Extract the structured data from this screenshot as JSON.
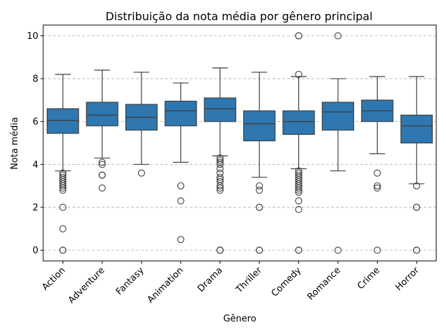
{
  "chart_data": {
    "type": "boxplot",
    "title": "Distribuição da nota média por gênero principal",
    "xlabel": "Gênero",
    "ylabel": "Nota média",
    "ylim": [
      -0.5,
      10.5
    ],
    "yticks": [
      0,
      2,
      4,
      6,
      8,
      10
    ],
    "grid": "horizontal-dashed",
    "box_color": "#2e77b0",
    "categories": [
      "Action",
      "Adventure",
      "Fantasy",
      "Animation",
      "Drama",
      "Thriller",
      "Comedy",
      "Romance",
      "Crime",
      "Horror"
    ],
    "boxes": [
      {
        "name": "Action",
        "whisker_low": 3.7,
        "q1": 5.45,
        "median": 6.05,
        "q3": 6.6,
        "whisker_high": 8.2,
        "outliers": [
          3.6,
          3.5,
          3.4,
          3.3,
          3.2,
          3.1,
          3.0,
          2.9,
          2.8,
          2.0,
          1.0,
          0,
          0
        ]
      },
      {
        "name": "Adventure",
        "whisker_low": 4.3,
        "q1": 5.8,
        "median": 6.3,
        "q3": 6.9,
        "whisker_high": 8.4,
        "outliers": [
          4.1,
          4.0,
          3.5,
          3.5,
          2.9
        ]
      },
      {
        "name": "Fantasy",
        "whisker_low": 4.0,
        "q1": 5.6,
        "median": 6.2,
        "q3": 6.8,
        "whisker_high": 8.3,
        "outliers": [
          3.6
        ]
      },
      {
        "name": "Animation",
        "whisker_low": 4.1,
        "q1": 5.8,
        "median": 6.5,
        "q3": 6.95,
        "whisker_high": 7.8,
        "outliers": [
          3.0,
          2.3,
          0.5
        ]
      },
      {
        "name": "Drama",
        "whisker_low": 4.4,
        "q1": 6.0,
        "median": 6.6,
        "q3": 7.1,
        "whisker_high": 8.5,
        "outliers": [
          4.3,
          4.2,
          4.1,
          4.0,
          3.8,
          3.6,
          3.4,
          3.3,
          3.2,
          3.0,
          2.9,
          2.8,
          0,
          0,
          0
        ]
      },
      {
        "name": "Thriller",
        "whisker_low": 3.4,
        "q1": 5.1,
        "median": 5.9,
        "q3": 6.5,
        "whisker_high": 8.3,
        "outliers": [
          3.0,
          2.8,
          2.0,
          2.0,
          0,
          0
        ]
      },
      {
        "name": "Comedy",
        "whisker_low": 3.8,
        "q1": 5.4,
        "median": 6.0,
        "q3": 6.5,
        "whisker_high": 8.1,
        "outliers": [
          10.0,
          10.0,
          8.2,
          3.7,
          3.6,
          3.5,
          3.4,
          3.3,
          3.2,
          3.1,
          3.0,
          2.9,
          2.8,
          2.7,
          2.3,
          1.9,
          0,
          0
        ]
      },
      {
        "name": "Romance",
        "whisker_low": 3.7,
        "q1": 5.6,
        "median": 6.45,
        "q3": 6.9,
        "whisker_high": 8.0,
        "outliers": [
          10.0,
          0
        ]
      },
      {
        "name": "Crime",
        "whisker_low": 4.5,
        "q1": 6.0,
        "median": 6.5,
        "q3": 7.0,
        "whisker_high": 8.1,
        "outliers": [
          3.6,
          3.0,
          2.9,
          0
        ]
      },
      {
        "name": "Horror",
        "whisker_low": 3.1,
        "q1": 5.0,
        "median": 5.8,
        "q3": 6.3,
        "whisker_high": 8.1,
        "outliers": [
          3.0,
          2.0,
          2.0,
          0,
          0
        ]
      }
    ]
  }
}
